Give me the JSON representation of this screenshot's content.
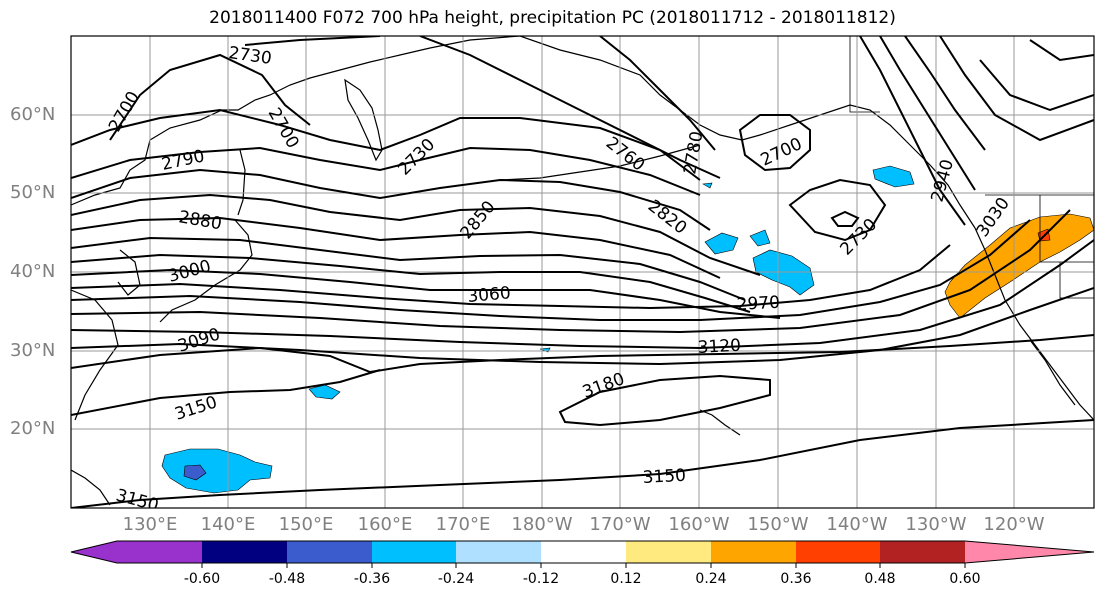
{
  "title": "2018011400 F072 700 hPa height, precipitation PC (2018011712 - 2018011812)",
  "lat_labels": [
    "60°N",
    "50°N",
    "40°N",
    "30°N",
    "20°N"
  ],
  "lon_labels": [
    "130°E",
    "140°E",
    "150°E",
    "160°E",
    "170°E",
    "180°W",
    "170°W",
    "160°W",
    "150°W",
    "140°W",
    "130°W",
    "120°W"
  ],
  "contour_labels": [
    "2730",
    "2700",
    "2700",
    "2790",
    "2730",
    "2760",
    "2780",
    "2700",
    "2880",
    "2850",
    "2820",
    "2730",
    "2940",
    "3030",
    "3000",
    "3060",
    "2970",
    "3090",
    "3120",
    "3150",
    "3180",
    "3150",
    "3150"
  ],
  "colorbar": {
    "tick_labels": [
      "-0.60",
      "-0.48",
      "-0.36",
      "-0.24",
      "-0.12",
      "0.12",
      "0.24",
      "0.36",
      "0.48",
      "0.60"
    ],
    "colors": [
      "#9932cc",
      "#000080",
      "#3a5ccc",
      "#00bfff",
      "#b0e0ff",
      "#ffffff",
      "#ffea80",
      "#ffa500",
      "#ff4000",
      "#b22222",
      "#ff88aa"
    ]
  }
}
